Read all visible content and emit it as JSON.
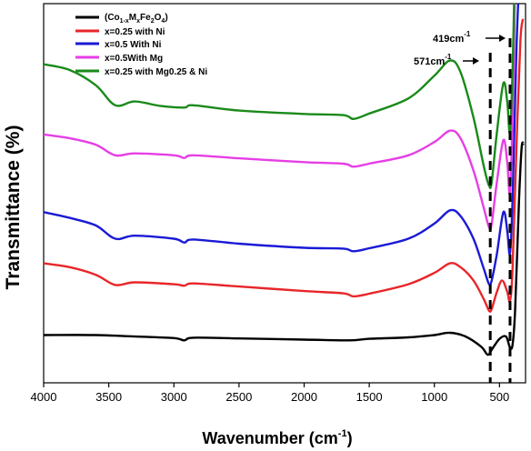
{
  "chart_data": {
    "type": "line",
    "xlabel": "Wavenumber (cm",
    "xlabel_sup": "-1",
    "xlabel_end": ")",
    "ylabel": "Transmittance (%)",
    "xlim": [
      4000,
      300
    ],
    "ylim": [
      0,
      100
    ],
    "x_ticks": [
      4000,
      3500,
      3000,
      2500,
      2000,
      1500,
      1000,
      500
    ],
    "x_tick_labels": [
      "4000",
      "3500",
      "3000",
      "2500",
      "2000",
      "1500",
      "1000",
      "500"
    ],
    "legend_position": "top-left",
    "legend_first_label": {
      "a": "(Co",
      "b": "1-x",
      "c": "M",
      "d": "x",
      "e": "Fe",
      "f": "2",
      "g": "O",
      "h": "4",
      "i": ")"
    },
    "annotations": [
      {
        "label_main": "571cm",
        "label_sup": "-1",
        "x": 571
      },
      {
        "label_main": "419cm",
        "label_sup": "-1",
        "x": 419
      }
    ],
    "series": [
      {
        "name": "(Co1-xMxFe2O4)",
        "color": "#000000",
        "points": [
          [
            4000,
            12.6
          ],
          [
            3600,
            12.6
          ],
          [
            3300,
            12.2
          ],
          [
            3000,
            11.8
          ],
          [
            2920,
            11.2
          ],
          [
            2850,
            11.9
          ],
          [
            2500,
            11.7
          ],
          [
            2000,
            11.4
          ],
          [
            1650,
            11.2
          ],
          [
            1500,
            11.6
          ],
          [
            1200,
            12.0
          ],
          [
            1000,
            12.6
          ],
          [
            880,
            13.2
          ],
          [
            760,
            12.2
          ],
          [
            640,
            9.5
          ],
          [
            590,
            7.4
          ],
          [
            555,
            9.0
          ],
          [
            500,
            11.6
          ],
          [
            450,
            12.2
          ],
          [
            420,
            9.4
          ],
          [
            400,
            10.0
          ],
          [
            380,
            19.0
          ],
          [
            350,
            48.0
          ],
          [
            330,
            62.0
          ],
          [
            315,
            63.0
          ]
        ]
      },
      {
        "name": "x=0.25 with Ni",
        "color": "#e8262a",
        "points": [
          [
            4000,
            31.5
          ],
          [
            3800,
            30.5
          ],
          [
            3600,
            28.5
          ],
          [
            3450,
            25.8
          ],
          [
            3300,
            26.5
          ],
          [
            3000,
            26.0
          ],
          [
            2920,
            25.6
          ],
          [
            2850,
            26.2
          ],
          [
            2500,
            25.4
          ],
          [
            2000,
            24.2
          ],
          [
            1700,
            23.6
          ],
          [
            1620,
            22.8
          ],
          [
            1500,
            23.5
          ],
          [
            1200,
            26.0
          ],
          [
            1000,
            29.0
          ],
          [
            880,
            31.5
          ],
          [
            800,
            30.5
          ],
          [
            700,
            27.0
          ],
          [
            620,
            22.0
          ],
          [
            580,
            19.0
          ],
          [
            560,
            19.5
          ],
          [
            520,
            24.0
          ],
          [
            480,
            27.0
          ],
          [
            440,
            24.0
          ],
          [
            420,
            21.5
          ],
          [
            400,
            30.0
          ],
          [
            370,
            62.0
          ],
          [
            340,
            90.0
          ],
          [
            320,
            96.0
          ]
        ]
      },
      {
        "name": "x=0.5 With Ni",
        "color": "#1a1ad6",
        "points": [
          [
            4000,
            45.0
          ],
          [
            3800,
            43.5
          ],
          [
            3600,
            41.5
          ],
          [
            3450,
            38.0
          ],
          [
            3300,
            38.8
          ],
          [
            3000,
            38.0
          ],
          [
            2920,
            37.0
          ],
          [
            2850,
            37.8
          ],
          [
            2500,
            36.7
          ],
          [
            2000,
            35.6
          ],
          [
            1700,
            35.4
          ],
          [
            1620,
            34.7
          ],
          [
            1500,
            35.5
          ],
          [
            1200,
            38.0
          ],
          [
            1000,
            42.0
          ],
          [
            880,
            45.5
          ],
          [
            800,
            44.0
          ],
          [
            700,
            38.0
          ],
          [
            620,
            30.0
          ],
          [
            580,
            26.0
          ],
          [
            560,
            27.0
          ],
          [
            520,
            34.0
          ],
          [
            470,
            45.0
          ],
          [
            440,
            40.0
          ],
          [
            420,
            34.0
          ],
          [
            400,
            48.0
          ],
          [
            370,
            88.0
          ],
          [
            350,
            105.0
          ]
        ]
      },
      {
        "name": "x=0.5With Mg",
        "color": "#e63ee6",
        "points": [
          [
            4000,
            65.5
          ],
          [
            3800,
            64.5
          ],
          [
            3600,
            62.8
          ],
          [
            3450,
            60.0
          ],
          [
            3300,
            60.5
          ],
          [
            3000,
            60.0
          ],
          [
            2920,
            59.3
          ],
          [
            2850,
            60.0
          ],
          [
            2500,
            59.2
          ],
          [
            2000,
            58.2
          ],
          [
            1700,
            57.8
          ],
          [
            1620,
            57.0
          ],
          [
            1500,
            57.8
          ],
          [
            1200,
            60.0
          ],
          [
            1000,
            63.5
          ],
          [
            880,
            66.5
          ],
          [
            800,
            64.5
          ],
          [
            700,
            56.0
          ],
          [
            620,
            46.0
          ],
          [
            580,
            41.0
          ],
          [
            560,
            42.0
          ],
          [
            520,
            53.0
          ],
          [
            470,
            64.0
          ],
          [
            440,
            58.0
          ],
          [
            420,
            50.0
          ],
          [
            400,
            70.0
          ],
          [
            380,
            105.0
          ]
        ]
      },
      {
        "name": "x=0.25 with Mg0.25 & Ni",
        "color": "#1a8a1a",
        "points": [
          [
            4000,
            84.0
          ],
          [
            3800,
            82.5
          ],
          [
            3600,
            78.5
          ],
          [
            3450,
            73.2
          ],
          [
            3300,
            74.2
          ],
          [
            3100,
            73.0
          ],
          [
            2920,
            72.6
          ],
          [
            2850,
            73.2
          ],
          [
            2500,
            71.8
          ],
          [
            2000,
            70.9
          ],
          [
            1700,
            70.6
          ],
          [
            1620,
            69.6
          ],
          [
            1500,
            71.0
          ],
          [
            1200,
            75.0
          ],
          [
            1000,
            81.0
          ],
          [
            880,
            85.0
          ],
          [
            800,
            82.0
          ],
          [
            700,
            70.0
          ],
          [
            620,
            57.0
          ],
          [
            580,
            52.0
          ],
          [
            560,
            53.0
          ],
          [
            520,
            66.0
          ],
          [
            470,
            79.0
          ],
          [
            440,
            74.0
          ],
          [
            420,
            66.0
          ],
          [
            400,
            82.0
          ],
          [
            385,
            105.0
          ]
        ]
      }
    ]
  }
}
